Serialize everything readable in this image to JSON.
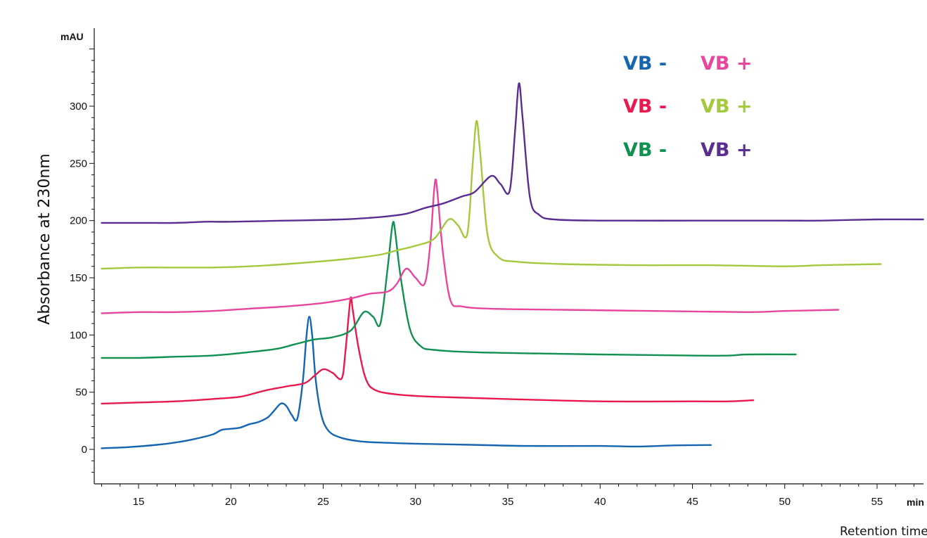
{
  "chart_data": {
    "type": "line",
    "y_unit": "mAU",
    "x_unit": "min",
    "ylabel": "Absorbance at 230nm",
    "xlabel": "Retention time (min)",
    "xlim": [
      12.9,
      57.5
    ],
    "ylim": [
      -30,
      360
    ],
    "x_ticks": [
      15,
      20,
      25,
      30,
      35,
      40,
      45,
      50,
      55
    ],
    "y_ticks": [
      0,
      50,
      100,
      150,
      200,
      250,
      300
    ],
    "legend": {
      "position": "top-right",
      "rows": [
        {
          "left": {
            "text": "VB -",
            "color": "#1565b0"
          },
          "right": {
            "text": "VB +",
            "color": "#e8469e"
          }
        },
        {
          "left": {
            "text": "VB -",
            "color": "#e8194f"
          },
          "right": {
            "text": "VB +",
            "color": "#a4c93e"
          }
        },
        {
          "left": {
            "text": "VB -",
            "color": "#119151"
          },
          "right": {
            "text": "VB +",
            "color": "#5a2d91"
          }
        }
      ]
    },
    "series": [
      {
        "color": "#1565b0",
        "points": [
          [
            13.0,
            1
          ],
          [
            14.5,
            2
          ],
          [
            16,
            4
          ],
          [
            17,
            6
          ],
          [
            18,
            9
          ],
          [
            19,
            13
          ],
          [
            19.5,
            17
          ],
          [
            20,
            18
          ],
          [
            20.5,
            19
          ],
          [
            21,
            22
          ],
          [
            21.5,
            24
          ],
          [
            22,
            28
          ],
          [
            22.3,
            33
          ],
          [
            22.7,
            40
          ],
          [
            23.0,
            38
          ],
          [
            23.3,
            30
          ],
          [
            23.6,
            27
          ],
          [
            23.9,
            60
          ],
          [
            24.1,
            100
          ],
          [
            24.25,
            116
          ],
          [
            24.4,
            100
          ],
          [
            24.6,
            60
          ],
          [
            24.9,
            30
          ],
          [
            25.3,
            16
          ],
          [
            26,
            10
          ],
          [
            27,
            7
          ],
          [
            28,
            6
          ],
          [
            30,
            5
          ],
          [
            33,
            4
          ],
          [
            36,
            3
          ],
          [
            40,
            3
          ],
          [
            42,
            2.5
          ],
          [
            44,
            3.5
          ],
          [
            46,
            3.8
          ]
        ]
      },
      {
        "color": "#e8194f",
        "points": [
          [
            13.0,
            40
          ],
          [
            15,
            41
          ],
          [
            17,
            42
          ],
          [
            19,
            44
          ],
          [
            20.5,
            46
          ],
          [
            21.5,
            50
          ],
          [
            22,
            52
          ],
          [
            23,
            55
          ],
          [
            24,
            58
          ],
          [
            24.5,
            64
          ],
          [
            25.0,
            70
          ],
          [
            25.5,
            67
          ],
          [
            26,
            62
          ],
          [
            26.2,
            85
          ],
          [
            26.4,
            120
          ],
          [
            26.5,
            133
          ],
          [
            26.6,
            122
          ],
          [
            26.9,
            90
          ],
          [
            27.3,
            62
          ],
          [
            27.8,
            52
          ],
          [
            29,
            48
          ],
          [
            31,
            46
          ],
          [
            35,
            44
          ],
          [
            40,
            42
          ],
          [
            45,
            42
          ],
          [
            47,
            42
          ],
          [
            48.3,
            43
          ]
        ]
      },
      {
        "color": "#119151",
        "points": [
          [
            13.0,
            80
          ],
          [
            15,
            80
          ],
          [
            17,
            81
          ],
          [
            19,
            82
          ],
          [
            21,
            85
          ],
          [
            22.5,
            88
          ],
          [
            23.5,
            92
          ],
          [
            24.5,
            96
          ],
          [
            25.5,
            98
          ],
          [
            26.5,
            104
          ],
          [
            27.2,
            120
          ],
          [
            27.7,
            116
          ],
          [
            28.1,
            110
          ],
          [
            28.5,
            160
          ],
          [
            28.7,
            190
          ],
          [
            28.8,
            199
          ],
          [
            28.9,
            190
          ],
          [
            29.2,
            150
          ],
          [
            29.7,
            105
          ],
          [
            30.3,
            90
          ],
          [
            31,
            87
          ],
          [
            33,
            85
          ],
          [
            36,
            84
          ],
          [
            40,
            83
          ],
          [
            45,
            82
          ],
          [
            47,
            82
          ],
          [
            48,
            83
          ],
          [
            50.6,
            83
          ]
        ]
      },
      {
        "color": "#e8469e",
        "points": [
          [
            13.0,
            119
          ],
          [
            15,
            120
          ],
          [
            17,
            120
          ],
          [
            19,
            121
          ],
          [
            21,
            123
          ],
          [
            23,
            125
          ],
          [
            25,
            128
          ],
          [
            26.5,
            132
          ],
          [
            27.5,
            136
          ],
          [
            28.5,
            138
          ],
          [
            29.0,
            145
          ],
          [
            29.5,
            158
          ],
          [
            30.0,
            150
          ],
          [
            30.5,
            145
          ],
          [
            30.8,
            180
          ],
          [
            31.0,
            225
          ],
          [
            31.1,
            236
          ],
          [
            31.2,
            222
          ],
          [
            31.5,
            170
          ],
          [
            31.9,
            130
          ],
          [
            32.5,
            125
          ],
          [
            34,
            123
          ],
          [
            38,
            122
          ],
          [
            43,
            121
          ],
          [
            48,
            120
          ],
          [
            50,
            121
          ],
          [
            52.9,
            122
          ]
        ]
      },
      {
        "color": "#a4c93e",
        "points": [
          [
            13.0,
            158
          ],
          [
            15,
            159
          ],
          [
            16.3,
            159
          ],
          [
            17,
            159
          ],
          [
            19,
            159
          ],
          [
            21,
            160
          ],
          [
            23,
            162
          ],
          [
            26,
            166
          ],
          [
            28,
            170
          ],
          [
            29,
            174
          ],
          [
            30,
            178
          ],
          [
            31,
            184
          ],
          [
            31.8,
            201
          ],
          [
            32.3,
            196
          ],
          [
            32.8,
            188
          ],
          [
            33.1,
            250
          ],
          [
            33.3,
            287
          ],
          [
            33.5,
            260
          ],
          [
            33.9,
            188
          ],
          [
            34.5,
            168
          ],
          [
            35.5,
            164
          ],
          [
            38,
            162
          ],
          [
            42,
            161
          ],
          [
            46,
            161
          ],
          [
            50,
            160
          ],
          [
            52,
            161
          ],
          [
            55.2,
            162
          ]
        ]
      },
      {
        "color": "#5a2d91",
        "points": [
          [
            13.0,
            198
          ],
          [
            15,
            198
          ],
          [
            17,
            198
          ],
          [
            18.6,
            199
          ],
          [
            20,
            199
          ],
          [
            23,
            200
          ],
          [
            26,
            201
          ],
          [
            28,
            203
          ],
          [
            29.5,
            206
          ],
          [
            30.5,
            211
          ],
          [
            31.5,
            215
          ],
          [
            32.5,
            221
          ],
          [
            33.2,
            225
          ],
          [
            34.1,
            239
          ],
          [
            34.6,
            232
          ],
          [
            35.1,
            226
          ],
          [
            35.4,
            280
          ],
          [
            35.6,
            320
          ],
          [
            35.8,
            290
          ],
          [
            36.2,
            220
          ],
          [
            36.7,
            205
          ],
          [
            37.5,
            201
          ],
          [
            40,
            200
          ],
          [
            45,
            200
          ],
          [
            50,
            200
          ],
          [
            52,
            200
          ],
          [
            55,
            201
          ],
          [
            57.5,
            201
          ]
        ]
      }
    ]
  }
}
